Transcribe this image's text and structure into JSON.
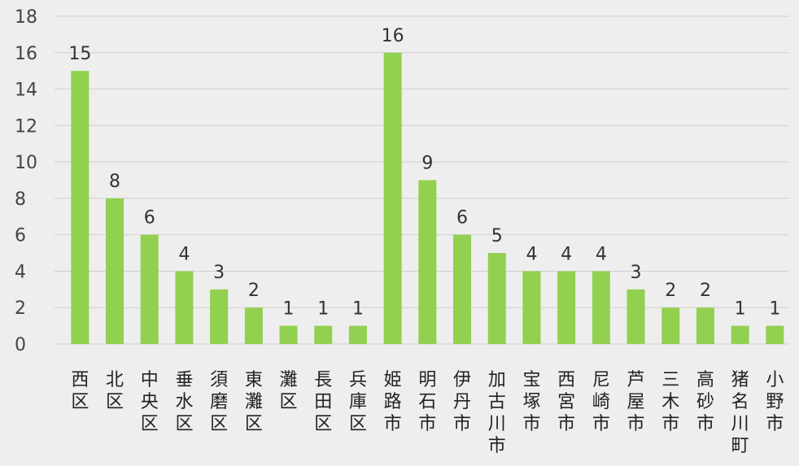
{
  "chart_data": {
    "type": "bar",
    "categories": [
      "西区",
      "北区",
      "中央区",
      "垂水区",
      "須磨区",
      "東灘区",
      "灘区",
      "長田区",
      "兵庫区",
      "姫路市",
      "明石市",
      "伊丹市",
      "加古川市",
      "宝塚市",
      "西宮市",
      "尼崎市",
      "芦屋市",
      "三木市",
      "高砂市",
      "猪名川町",
      "小野市"
    ],
    "values": [
      15,
      8,
      6,
      4,
      3,
      2,
      1,
      1,
      1,
      16,
      9,
      6,
      5,
      4,
      4,
      4,
      3,
      2,
      2,
      1,
      1
    ],
    "yticks": [
      0,
      2,
      4,
      6,
      8,
      10,
      12,
      14,
      16,
      18
    ],
    "ylim": [
      0,
      18
    ],
    "grid": true,
    "bar_color": "#92d050",
    "title": "",
    "xlabel": "",
    "ylabel": ""
  }
}
